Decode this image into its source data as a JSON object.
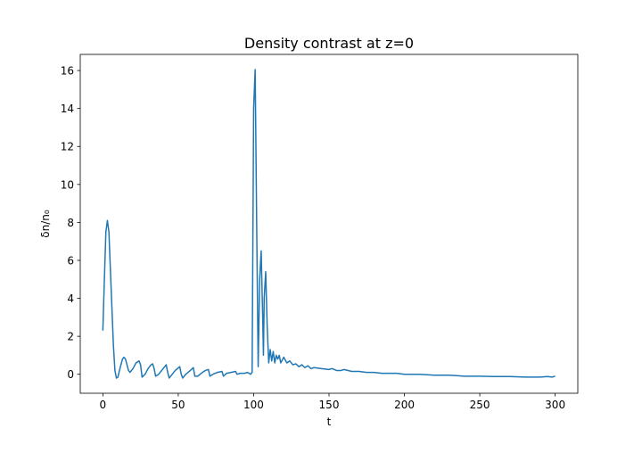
{
  "chart_data": {
    "type": "line",
    "title": "Density contrast at z=0",
    "xlabel": "t",
    "ylabel": "δn/n₀",
    "x": [
      0,
      1,
      2,
      3,
      4,
      5,
      6,
      7,
      8,
      9,
      10,
      11,
      12,
      13,
      14,
      15,
      16,
      17,
      18,
      20,
      22,
      24,
      25,
      26,
      28,
      30,
      32,
      33,
      34,
      35,
      37,
      40,
      42,
      43,
      44,
      46,
      48,
      51,
      52,
      53,
      55,
      58,
      60,
      61,
      63,
      66,
      68,
      70,
      71,
      73,
      76,
      79,
      80,
      82,
      85,
      88,
      89,
      91,
      94,
      96,
      98,
      99,
      100,
      101,
      102,
      103,
      104,
      105,
      106,
      106.5,
      107,
      108,
      109,
      110,
      111,
      112,
      113,
      114,
      115,
      116,
      117,
      118,
      120,
      122,
      124,
      126,
      128,
      130,
      132,
      134,
      136,
      138,
      140,
      145,
      150,
      152,
      155,
      158,
      160,
      165,
      170,
      175,
      180,
      185,
      190,
      195,
      200,
      210,
      220,
      230,
      240,
      250,
      260,
      270,
      280,
      290,
      295,
      298,
      300
    ],
    "series": [
      {
        "name": "δn/n₀",
        "color": "#1f77b4",
        "values": [
          2.3,
          5,
          7.5,
          8.1,
          7.5,
          5.5,
          3.5,
          1.5,
          0.2,
          -0.2,
          -0.15,
          0.2,
          0.5,
          0.8,
          0.9,
          0.8,
          0.5,
          0.2,
          0.1,
          0.3,
          0.6,
          0.7,
          0.5,
          -0.15,
          0,
          0.3,
          0.5,
          0.55,
          0.3,
          -0.1,
          0,
          0.3,
          0.5,
          0.1,
          -0.2,
          0,
          0.2,
          0.4,
          0,
          -0.2,
          0,
          0.2,
          0.35,
          -0.1,
          -0.1,
          0.1,
          0.2,
          0.25,
          -0.1,
          0,
          0.1,
          0.15,
          -0.1,
          0.05,
          0.1,
          0.15,
          0,
          0.05,
          0.05,
          0.1,
          0,
          0.1,
          14,
          16.05,
          8,
          0.4,
          5,
          6.5,
          3,
          1.0,
          4,
          5.4,
          2.5,
          0.6,
          1.3,
          0.7,
          1.2,
          0.6,
          1.0,
          0.8,
          1.0,
          0.6,
          0.9,
          0.6,
          0.7,
          0.5,
          0.55,
          0.4,
          0.5,
          0.35,
          0.45,
          0.3,
          0.35,
          0.3,
          0.25,
          0.3,
          0.2,
          0.2,
          0.25,
          0.15,
          0.15,
          0.1,
          0.1,
          0.05,
          0.05,
          0.05,
          0,
          0,
          -0.05,
          -0.05,
          -0.1,
          -0.1,
          -0.12,
          -0.12,
          -0.15,
          -0.15,
          -0.12,
          -0.15,
          -0.1
        ]
      }
    ],
    "xlim": [
      -15,
      315
    ],
    "ylim": [
      -1.0,
      16.85
    ],
    "xticks": [
      0,
      50,
      100,
      150,
      200,
      250,
      300
    ],
    "yticks": [
      0,
      2,
      4,
      6,
      8,
      10,
      12,
      14,
      16
    ]
  }
}
